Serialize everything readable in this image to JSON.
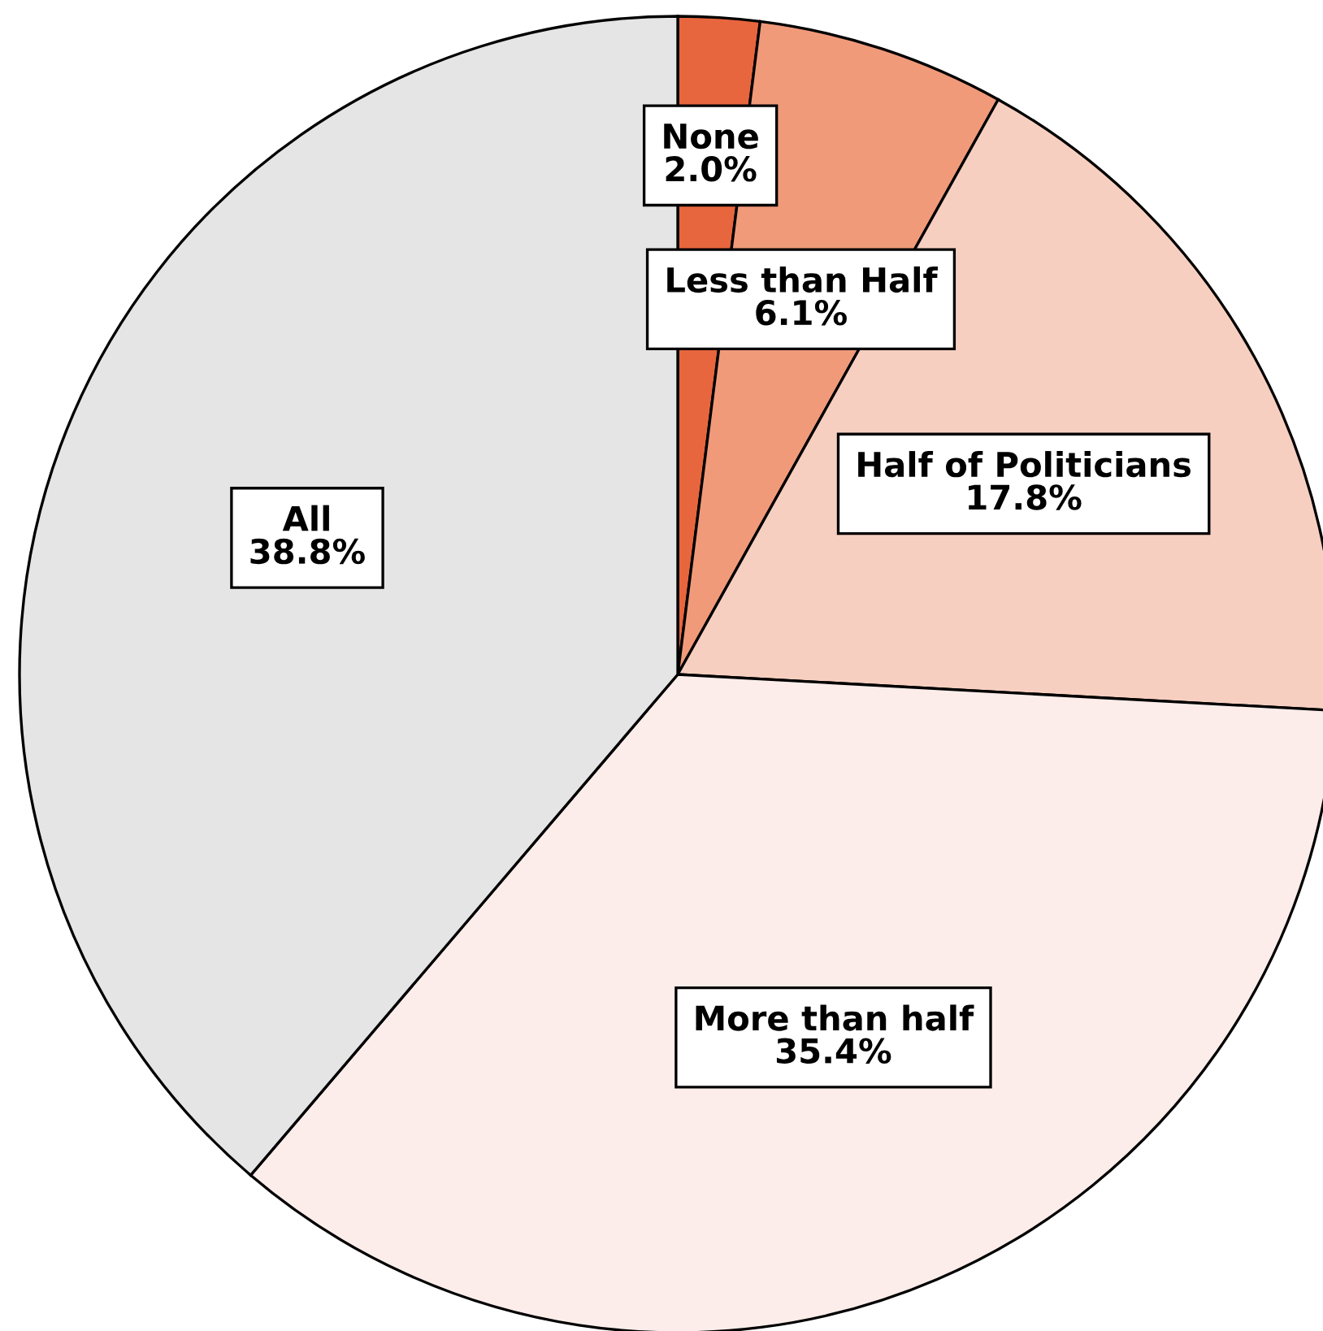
{
  "chart_data": {
    "type": "pie",
    "categories": [
      "None",
      "Less than Half",
      "Half of Politicians",
      "More than half",
      "All"
    ],
    "values": [
      2.0,
      6.1,
      17.8,
      35.4,
      38.8
    ],
    "colors": [
      "#e8663d",
      "#f09a7a",
      "#f7cfc0",
      "#fcedea",
      "#e5e5e5"
    ],
    "value_labels": [
      "2.0%",
      "6.1%",
      "17.8%",
      "35.4%",
      "38.8%"
    ],
    "legend": false
  }
}
